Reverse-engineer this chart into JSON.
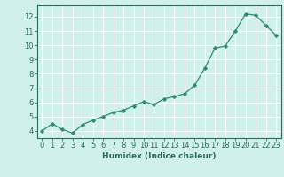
{
  "x": [
    0,
    1,
    2,
    3,
    4,
    5,
    6,
    7,
    8,
    9,
    10,
    11,
    12,
    13,
    14,
    15,
    16,
    17,
    18,
    19,
    20,
    21,
    22,
    23
  ],
  "y": [
    4.0,
    4.5,
    4.1,
    3.85,
    4.45,
    4.75,
    5.0,
    5.3,
    5.45,
    5.75,
    6.05,
    5.85,
    6.25,
    6.4,
    6.6,
    7.2,
    8.4,
    9.8,
    9.95,
    11.0,
    12.2,
    12.1,
    11.4,
    10.7
  ],
  "line_color": "#2e8b6e",
  "marker": "D",
  "marker_size": 2.2,
  "bg_color": "#cff0ec",
  "grid_color": "#ffffff",
  "axis_color": "#2e6b5e",
  "xlabel": "Humidex (Indice chaleur)",
  "xlim": [
    -0.5,
    23.5
  ],
  "ylim": [
    3.5,
    12.8
  ],
  "yticks": [
    4,
    5,
    6,
    7,
    8,
    9,
    10,
    11,
    12
  ],
  "xticks": [
    0,
    1,
    2,
    3,
    4,
    5,
    6,
    7,
    8,
    9,
    10,
    11,
    12,
    13,
    14,
    15,
    16,
    17,
    18,
    19,
    20,
    21,
    22,
    23
  ],
  "label_fontsize": 6.5,
  "tick_fontsize": 6.0
}
